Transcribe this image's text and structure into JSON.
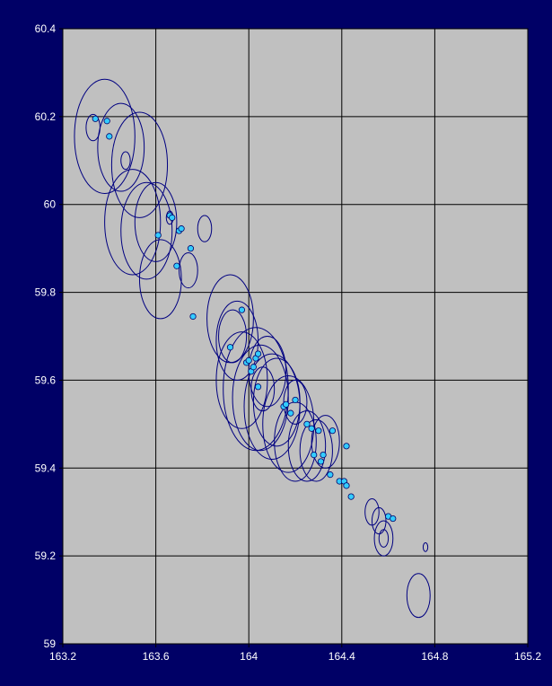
{
  "chart_data": {
    "type": "scatter",
    "title": "",
    "xlabel": "",
    "ylabel": "",
    "xlim": [
      163.2,
      165.2
    ],
    "ylim": [
      59.0,
      60.4
    ],
    "x_ticks": [
      163.2,
      163.6,
      164,
      164.4,
      164.8,
      165.2
    ],
    "x_tick_labels": [
      "163.2",
      "163.6",
      "164",
      "164.4",
      "164.8",
      "165.2"
    ],
    "y_ticks": [
      59,
      59.2,
      59.4,
      59.6,
      59.8,
      60,
      60.2,
      60.4
    ],
    "y_tick_labels": [
      "59",
      "59.2",
      "59.4",
      "59.6",
      "59.8",
      "60",
      "60.2",
      "60.4"
    ],
    "grid": true,
    "legend": "none",
    "colors": {
      "background": "#000066",
      "plot_area": "#c0c0c0",
      "grid": "#000000",
      "point_fill": "#33ccff",
      "point_stroke": "#000066",
      "circle_stroke": "#000080",
      "tick_label": "#ffffff"
    },
    "points": [
      {
        "x": 163.34,
        "y": 60.195
      },
      {
        "x": 163.39,
        "y": 60.19
      },
      {
        "x": 163.4,
        "y": 60.155
      },
      {
        "x": 163.61,
        "y": 59.93
      },
      {
        "x": 163.66,
        "y": 59.975
      },
      {
        "x": 163.67,
        "y": 59.97
      },
      {
        "x": 163.69,
        "y": 59.86
      },
      {
        "x": 163.7,
        "y": 59.94
      },
      {
        "x": 163.71,
        "y": 59.945
      },
      {
        "x": 163.75,
        "y": 59.9
      },
      {
        "x": 163.76,
        "y": 59.745
      },
      {
        "x": 163.92,
        "y": 59.675
      },
      {
        "x": 163.97,
        "y": 59.76
      },
      {
        "x": 163.99,
        "y": 59.64
      },
      {
        "x": 164.0,
        "y": 59.645
      },
      {
        "x": 164.01,
        "y": 59.62
      },
      {
        "x": 164.02,
        "y": 59.63
      },
      {
        "x": 164.03,
        "y": 59.65
      },
      {
        "x": 164.04,
        "y": 59.66
      },
      {
        "x": 164.04,
        "y": 59.585
      },
      {
        "x": 164.15,
        "y": 59.54
      },
      {
        "x": 164.16,
        "y": 59.545
      },
      {
        "x": 164.18,
        "y": 59.525
      },
      {
        "x": 164.2,
        "y": 59.555
      },
      {
        "x": 164.25,
        "y": 59.5
      },
      {
        "x": 164.27,
        "y": 59.49
      },
      {
        "x": 164.28,
        "y": 59.43
      },
      {
        "x": 164.3,
        "y": 59.485
      },
      {
        "x": 164.31,
        "y": 59.415
      },
      {
        "x": 164.32,
        "y": 59.43
      },
      {
        "x": 164.35,
        "y": 59.385
      },
      {
        "x": 164.36,
        "y": 59.485
      },
      {
        "x": 164.39,
        "y": 59.37
      },
      {
        "x": 164.41,
        "y": 59.37
      },
      {
        "x": 164.42,
        "y": 59.45
      },
      {
        "x": 164.42,
        "y": 59.36
      },
      {
        "x": 164.44,
        "y": 59.335
      },
      {
        "x": 164.6,
        "y": 59.29
      },
      {
        "x": 164.62,
        "y": 59.285
      }
    ],
    "circles": [
      {
        "x": 163.38,
        "y": 60.155,
        "r": 0.13
      },
      {
        "x": 163.45,
        "y": 60.13,
        "r": 0.1
      },
      {
        "x": 163.53,
        "y": 60.09,
        "r": 0.12
      },
      {
        "x": 163.33,
        "y": 60.175,
        "r": 0.03
      },
      {
        "x": 163.47,
        "y": 60.1,
        "r": 0.02
      },
      {
        "x": 163.5,
        "y": 59.96,
        "r": 0.12
      },
      {
        "x": 163.56,
        "y": 59.94,
        "r": 0.11
      },
      {
        "x": 163.6,
        "y": 59.96,
        "r": 0.09
      },
      {
        "x": 163.62,
        "y": 59.83,
        "r": 0.09
      },
      {
        "x": 163.66,
        "y": 59.97,
        "r": 0.015
      },
      {
        "x": 163.81,
        "y": 59.945,
        "r": 0.03
      },
      {
        "x": 163.74,
        "y": 59.85,
        "r": 0.04
      },
      {
        "x": 163.92,
        "y": 59.74,
        "r": 0.1
      },
      {
        "x": 163.95,
        "y": 59.69,
        "r": 0.09
      },
      {
        "x": 163.93,
        "y": 59.7,
        "r": 0.06
      },
      {
        "x": 163.97,
        "y": 59.6,
        "r": 0.11
      },
      {
        "x": 164.03,
        "y": 59.58,
        "r": 0.14
      },
      {
        "x": 164.05,
        "y": 59.56,
        "r": 0.12
      },
      {
        "x": 164.1,
        "y": 59.54,
        "r": 0.12
      },
      {
        "x": 164.12,
        "y": 59.55,
        "r": 0.1
      },
      {
        "x": 164.06,
        "y": 59.58,
        "r": 0.05
      },
      {
        "x": 164.08,
        "y": 59.62,
        "r": 0.08
      },
      {
        "x": 164.17,
        "y": 59.5,
        "r": 0.11
      },
      {
        "x": 164.2,
        "y": 59.46,
        "r": 0.09
      },
      {
        "x": 164.25,
        "y": 59.45,
        "r": 0.08
      },
      {
        "x": 164.29,
        "y": 59.44,
        "r": 0.07
      },
      {
        "x": 164.33,
        "y": 59.46,
        "r": 0.06
      },
      {
        "x": 164.2,
        "y": 59.55,
        "r": 0.05
      },
      {
        "x": 164.53,
        "y": 59.3,
        "r": 0.03
      },
      {
        "x": 164.56,
        "y": 59.28,
        "r": 0.03
      },
      {
        "x": 164.58,
        "y": 59.24,
        "r": 0.04
      },
      {
        "x": 164.58,
        "y": 59.24,
        "r": 0.02
      },
      {
        "x": 164.76,
        "y": 59.22,
        "r": 0.01
      },
      {
        "x": 164.73,
        "y": 59.11,
        "r": 0.05
      }
    ]
  }
}
